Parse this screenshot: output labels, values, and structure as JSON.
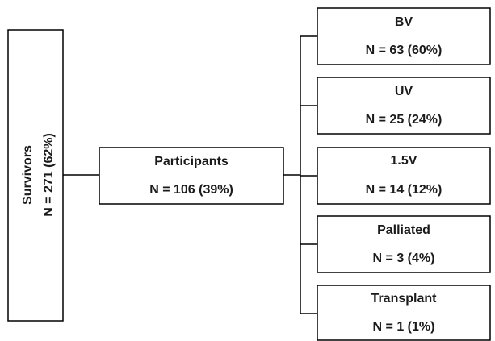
{
  "nodes": [
    {
      "label": "Survivors",
      "count": "N = 271 (62%)"
    },
    {
      "label": "Participants",
      "count": "N = 106 (39%)"
    },
    {
      "label": "BV",
      "count": "N = 63 (60%)"
    },
    {
      "label": "UV",
      "count": "N = 25 (24%)"
    },
    {
      "label": "1.5V",
      "count": "N = 14 (12%)"
    },
    {
      "label": "Palliated",
      "count": "N = 3 (4%)"
    },
    {
      "label": "Transplant",
      "count": "N = 1 (1%)"
    }
  ]
}
